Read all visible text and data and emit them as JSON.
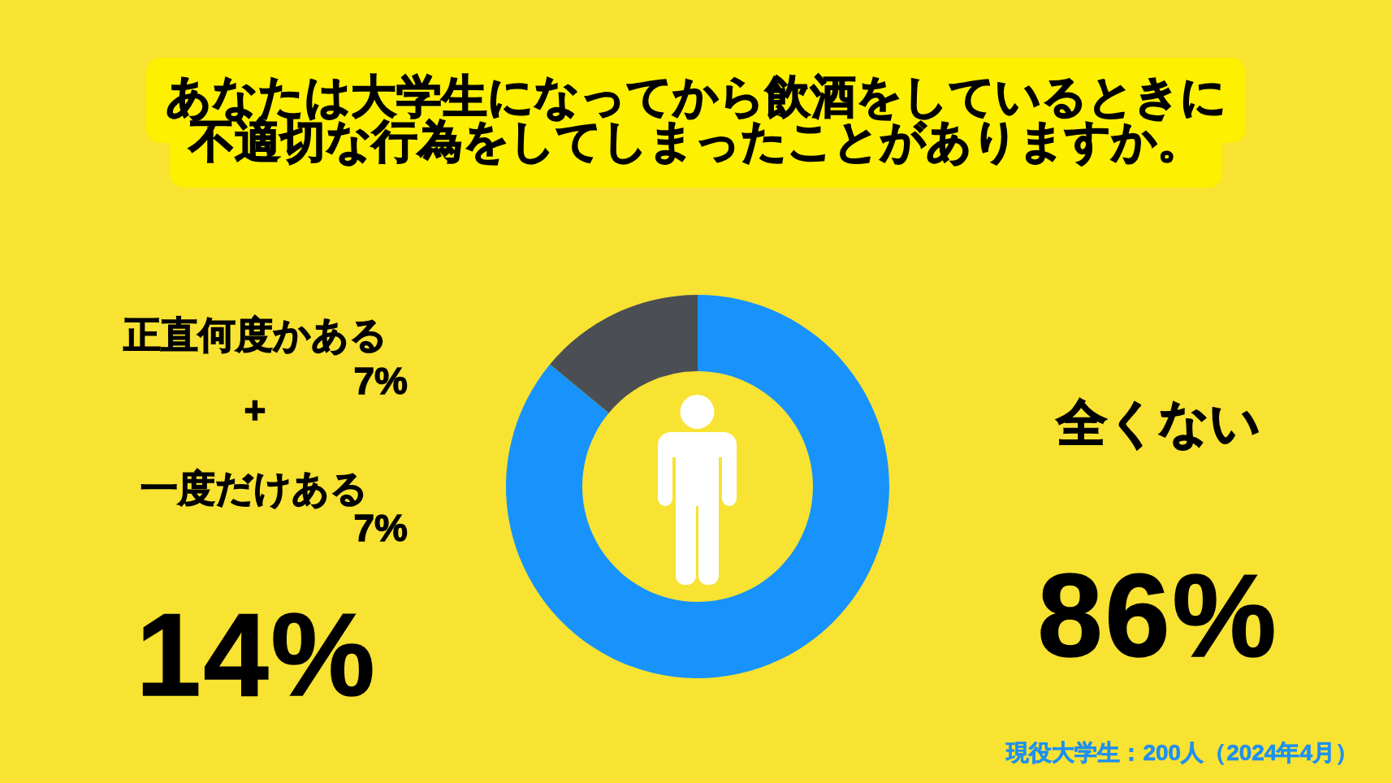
{
  "chart_data": {
    "type": "donut",
    "title": "あなたは大学生になってから飲酒をしているときに不適切な行為をしてしまったことがありますか。",
    "categories": [
      "全くない",
      null
    ],
    "values": [
      86,
      14
    ],
    "colors": [
      "#1793fb",
      "#4b4f54"
    ],
    "value_labels": [
      "86%",
      null
    ],
    "annotations": [
      "正直何度かある",
      "7%",
      "+",
      "一度だけある",
      "7%",
      "14%",
      "現役大学生：200人（2024年4月）"
    ]
  }
}
